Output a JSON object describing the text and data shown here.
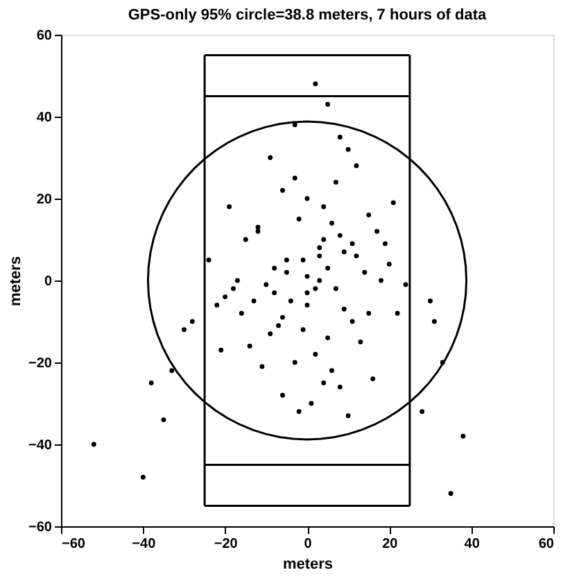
{
  "chart_data": {
    "type": "scatter",
    "title": "GPS-only 95% circle=38.8 meters, 7 hours of data",
    "xlabel": "meters",
    "ylabel": "meters",
    "xlim": [
      -60,
      60
    ],
    "ylim": [
      -60,
      60
    ],
    "xticks": [
      -60,
      -40,
      -20,
      0,
      20,
      40,
      60
    ],
    "yticks": [
      -60,
      -40,
      -20,
      0,
      20,
      40,
      60
    ],
    "grid": false,
    "legend": false,
    "series": [
      {
        "type": "scatter",
        "color": "#000000",
        "marker": "circle",
        "x": [
          2,
          5,
          -3,
          8,
          -9,
          10,
          12,
          -6,
          0,
          4,
          -2,
          6,
          -12,
          15,
          -15,
          3,
          -5,
          9,
          -8,
          14,
          -18,
          18,
          -20,
          20,
          -22,
          22,
          0,
          -4,
          7,
          -10,
          11,
          -1,
          5,
          -7,
          13,
          -14,
          2,
          -3,
          6,
          -11,
          16,
          -16,
          8,
          -6,
          1,
          -2,
          10,
          -9,
          4,
          17,
          -19,
          19,
          -13,
          12,
          -5,
          3,
          0,
          -8,
          9,
          -24,
          24,
          30,
          -30,
          33,
          -33,
          28,
          -35,
          -38,
          38,
          35,
          -40,
          -52,
          31,
          -28,
          7,
          -3,
          15,
          -17,
          2,
          5,
          -1,
          11,
          8,
          -12,
          21,
          -21,
          4,
          -6,
          0,
          3
        ],
        "values": [
          48,
          43,
          38,
          35,
          30,
          32,
          28,
          22,
          20,
          18,
          15,
          14,
          12,
          16,
          10,
          8,
          5,
          7,
          3,
          2,
          -2,
          0,
          -4,
          4,
          -6,
          -8,
          -3,
          -5,
          -2,
          -1,
          -10,
          -12,
          -14,
          -11,
          -15,
          -16,
          -18,
          -20,
          -22,
          -21,
          -24,
          -8,
          -26,
          -28,
          -30,
          -32,
          -33,
          -13,
          -25,
          12,
          18,
          9,
          -5,
          6,
          2,
          0,
          -6,
          -3,
          -7,
          5,
          -1,
          -5,
          -12,
          -20,
          -22,
          -32,
          -34,
          -25,
          -38,
          -52,
          -48,
          -40,
          -10,
          -10,
          24,
          25,
          -8,
          0,
          -2,
          3,
          5,
          9,
          11,
          13,
          19,
          -17,
          10,
          -9,
          1,
          6
        ]
      },
      {
        "type": "line",
        "color": "#000000",
        "marker": "none",
        "line_style": "solid",
        "x": [
          -25,
          25
        ],
        "values": [
          55,
          55
        ]
      },
      {
        "type": "line",
        "color": "#000000",
        "marker": "none",
        "line_style": "solid",
        "x": [
          -25,
          25
        ],
        "values": [
          -55,
          -55
        ]
      },
      {
        "type": "line",
        "color": "#000000",
        "marker": "none",
        "line_style": "solid",
        "x": [
          -25,
          -25
        ],
        "values": [
          -55,
          55
        ]
      },
      {
        "type": "line",
        "color": "#000000",
        "marker": "none",
        "line_style": "solid",
        "x": [
          25,
          25
        ],
        "values": [
          -55,
          55
        ]
      },
      {
        "type": "line",
        "color": "#000000",
        "marker": "none",
        "line_style": "solid",
        "x": [
          -25,
          25
        ],
        "values": [
          45,
          45
        ]
      },
      {
        "type": "line",
        "color": "#000000",
        "marker": "none",
        "line_style": "solid",
        "x": [
          -25,
          25
        ],
        "values": [
          -45,
          -45
        ]
      }
    ]
  }
}
